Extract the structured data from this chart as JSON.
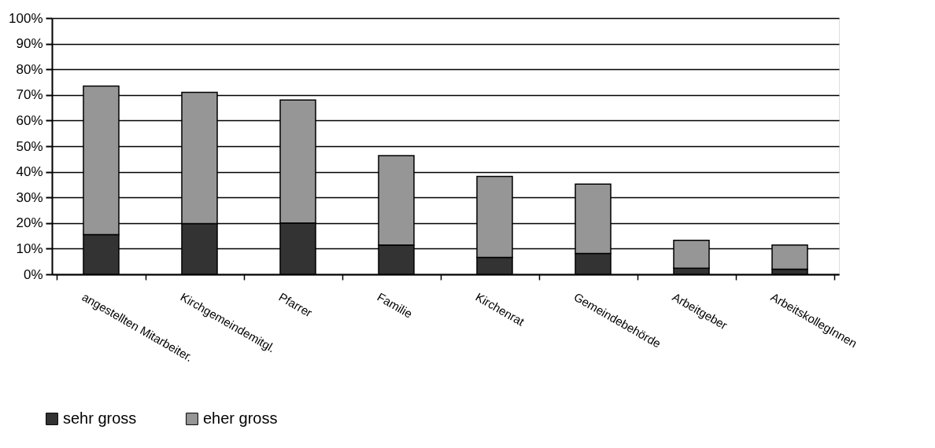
{
  "chart_data": {
    "type": "bar",
    "stacked": true,
    "categories": [
      "angestellten Mitarbeiter.",
      "Kirchgemeindemitgl.",
      "Pfarrer",
      "Familie",
      "Kirchenrat",
      "Gemeindebehörde",
      "Arbeitgeber",
      "ArbeitskollegInnen"
    ],
    "series": [
      {
        "name": "sehr gross",
        "color": "#333333",
        "values": [
          15.5,
          19.8,
          20.0,
          11.4,
          6.6,
          8.1,
          2.4,
          2.0
        ]
      },
      {
        "name": "eher gross",
        "color": "#969696",
        "values": [
          58.0,
          51.2,
          48.0,
          34.9,
          31.6,
          27.1,
          10.9,
          9.4
        ]
      }
    ],
    "ylim": [
      0,
      100
    ],
    "yticks": [
      {
        "value": 0,
        "label": "0%"
      },
      {
        "value": 10,
        "label": "10%"
      },
      {
        "value": 20,
        "label": "20%"
      },
      {
        "value": 30,
        "label": "30%"
      },
      {
        "value": 40,
        "label": "40%"
      },
      {
        "value": 50,
        "label": "50%"
      },
      {
        "value": 60,
        "label": "60%"
      },
      {
        "value": 70,
        "label": "70%"
      },
      {
        "value": 80,
        "label": "80%"
      },
      {
        "value": 90,
        "label": "90%"
      },
      {
        "value": 100,
        "label": "100%"
      }
    ],
    "grid": "y",
    "legend": "bottom left"
  }
}
